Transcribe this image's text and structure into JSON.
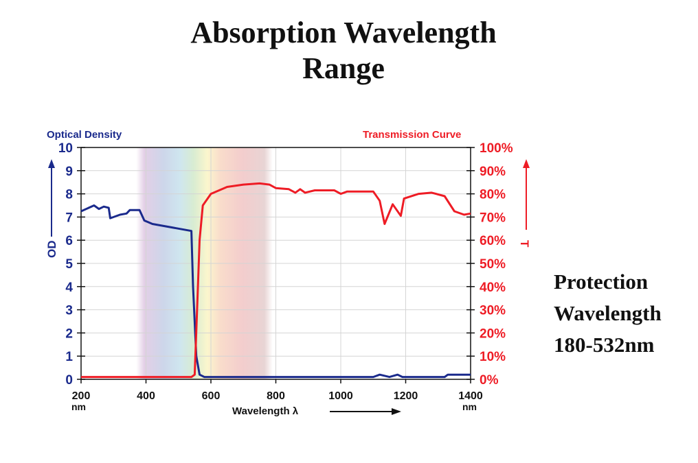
{
  "title_lines": [
    "Absorption Wavelength",
    "Range"
  ],
  "side_text": [
    "Protection",
    "Wavelength",
    "180-532nm"
  ],
  "chart_data": {
    "type": "line",
    "left_axis_title": "Optical Density",
    "left_axis_label": "OD",
    "right_axis_title": "Transmission Curve",
    "right_axis_label": "T",
    "xlabel": "Wavelength λ",
    "x_unit": "nm",
    "xlim": [
      200,
      1400
    ],
    "x_ticks": [
      200,
      400,
      600,
      800,
      1000,
      1200,
      1400
    ],
    "y_left_lim": [
      0,
      10
    ],
    "y_left_ticks": [
      "0",
      "1",
      "2",
      "3",
      "4",
      "5",
      "6",
      "7",
      "8",
      "9",
      "10"
    ],
    "y_right_lim": [
      0,
      100
    ],
    "y_right_ticks": [
      "0%",
      "10%",
      "20%",
      "30%",
      "40%",
      "50%",
      "60%",
      "70%",
      "80%",
      "90%",
      "100%"
    ],
    "grid": true,
    "visible_spectrum_band_nm": [
      370,
      790
    ],
    "colors": {
      "od": "#1a2a8c",
      "transmission": "#ee1c25"
    },
    "series": [
      {
        "axis": "left",
        "x": [
          200,
          240,
          255,
          270,
          285,
          290,
          320,
          340,
          350,
          380,
          395,
          420,
          500,
          540,
          545,
          555,
          565,
          580,
          1100,
          1120,
          1150,
          1175,
          1190,
          1320,
          1330,
          1400
        ],
        "y": [
          7.25,
          7.5,
          7.35,
          7.45,
          7.4,
          6.95,
          7.1,
          7.15,
          7.3,
          7.3,
          6.85,
          6.7,
          6.5,
          6.4,
          4,
          1,
          0.2,
          0.1,
          0.1,
          0.2,
          0.1,
          0.2,
          0.1,
          0.1,
          0.2,
          0.2
        ]
      },
      {
        "axis": "right",
        "x": [
          200,
          540,
          550,
          560,
          565,
          575,
          600,
          650,
          700,
          750,
          780,
          800,
          840,
          860,
          875,
          890,
          920,
          980,
          1000,
          1020,
          1100,
          1120,
          1135,
          1160,
          1185,
          1195,
          1240,
          1280,
          1320,
          1350,
          1380,
          1400
        ],
        "y": [
          1,
          1,
          2,
          40,
          60,
          75,
          80,
          83,
          84,
          84.5,
          84,
          82.5,
          82,
          80.5,
          82,
          80.5,
          81.5,
          81.5,
          80,
          81,
          81,
          77,
          67,
          75.5,
          70.5,
          78,
          80,
          80.5,
          79,
          72.5,
          71,
          71.5
        ]
      }
    ]
  }
}
